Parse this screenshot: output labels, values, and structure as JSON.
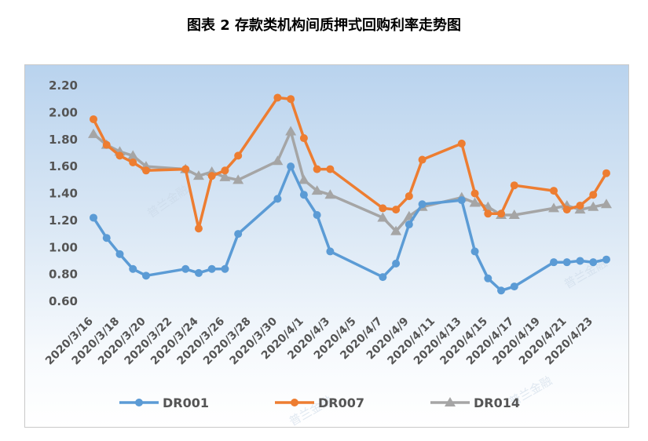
{
  "title": "图表 2  存款类机构间质押式回购利率走势图",
  "watermark_text": "普兰金融",
  "chart_data": {
    "type": "line",
    "title": "图表 2  存款类机构间质押式回购利率走势图",
    "xlabel": "",
    "ylabel": "",
    "ylim": [
      0.6,
      2.2
    ],
    "yticks": [
      "0.60",
      "0.80",
      "1.00",
      "1.20",
      "1.40",
      "1.60",
      "1.80",
      "2.00",
      "2.20"
    ],
    "x_tick_labels": [
      "2020/3/16",
      "2020/3/18",
      "2020/3/20",
      "2020/3/22",
      "2020/3/24",
      "2020/3/26",
      "2020/3/28",
      "2020/3/30",
      "2020/4/1",
      "2020/4/3",
      "2020/4/5",
      "2020/4/7",
      "2020/4/9",
      "2020/4/11",
      "2020/4/13",
      "2020/4/15",
      "2020/4/17",
      "2020/4/19",
      "2020/4/21",
      "2020/4/23"
    ],
    "grid": false,
    "legend_position": "bottom",
    "series": [
      {
        "name": "DR001",
        "color": "#5b9bd5",
        "marker": "circle",
        "points": [
          [
            "2020/3/16",
            1.22
          ],
          [
            "2020/3/17",
            1.07
          ],
          [
            "2020/3/18",
            0.95
          ],
          [
            "2020/3/19",
            0.84
          ],
          [
            "2020/3/20",
            0.79
          ],
          [
            "2020/3/23",
            0.84
          ],
          [
            "2020/3/24",
            0.81
          ],
          [
            "2020/3/25",
            0.84
          ],
          [
            "2020/3/26",
            0.84
          ],
          [
            "2020/3/27",
            1.1
          ],
          [
            "2020/3/30",
            1.36
          ],
          [
            "2020/3/31",
            1.6
          ],
          [
            "2020/4/1",
            1.39
          ],
          [
            "2020/4/2",
            1.24
          ],
          [
            "2020/4/3",
            0.97
          ],
          [
            "2020/4/7",
            0.78
          ],
          [
            "2020/4/8",
            0.88
          ],
          [
            "2020/4/9",
            1.17
          ],
          [
            "2020/4/10",
            1.32
          ],
          [
            "2020/4/13",
            1.35
          ],
          [
            "2020/4/14",
            0.97
          ],
          [
            "2020/4/15",
            0.77
          ],
          [
            "2020/4/16",
            0.68
          ],
          [
            "2020/4/17",
            0.71
          ],
          [
            "2020/4/20",
            0.89
          ],
          [
            "2020/4/21",
            0.89
          ],
          [
            "2020/4/22",
            0.9
          ],
          [
            "2020/4/23",
            0.89
          ],
          [
            "2020/4/24",
            0.91
          ]
        ]
      },
      {
        "name": "DR007",
        "color": "#ed7d31",
        "marker": "circle",
        "points": [
          [
            "2020/3/16",
            1.95
          ],
          [
            "2020/3/17",
            1.76
          ],
          [
            "2020/3/18",
            1.68
          ],
          [
            "2020/3/19",
            1.63
          ],
          [
            "2020/3/20",
            1.57
          ],
          [
            "2020/3/23",
            1.58
          ],
          [
            "2020/3/24",
            1.14
          ],
          [
            "2020/3/25",
            1.53
          ],
          [
            "2020/3/26",
            1.57
          ],
          [
            "2020/3/27",
            1.68
          ],
          [
            "2020/3/30",
            2.11
          ],
          [
            "2020/3/31",
            2.1
          ],
          [
            "2020/4/1",
            1.81
          ],
          [
            "2020/4/2",
            1.58
          ],
          [
            "2020/4/3",
            1.58
          ],
          [
            "2020/4/7",
            1.29
          ],
          [
            "2020/4/8",
            1.28
          ],
          [
            "2020/4/9",
            1.38
          ],
          [
            "2020/4/10",
            1.65
          ],
          [
            "2020/4/13",
            1.77
          ],
          [
            "2020/4/14",
            1.4
          ],
          [
            "2020/4/15",
            1.25
          ],
          [
            "2020/4/16",
            1.25
          ],
          [
            "2020/4/17",
            1.46
          ],
          [
            "2020/4/20",
            1.42
          ],
          [
            "2020/4/21",
            1.28
          ],
          [
            "2020/4/22",
            1.31
          ],
          [
            "2020/4/23",
            1.39
          ],
          [
            "2020/4/24",
            1.55
          ]
        ]
      },
      {
        "name": "DR014",
        "color": "#a5a5a5",
        "marker": "triangle",
        "points": [
          [
            "2020/3/16",
            1.84
          ],
          [
            "2020/3/17",
            1.76
          ],
          [
            "2020/3/18",
            1.71
          ],
          [
            "2020/3/19",
            1.68
          ],
          [
            "2020/3/20",
            1.6
          ],
          [
            "2020/3/23",
            1.58
          ],
          [
            "2020/3/24",
            1.53
          ],
          [
            "2020/3/25",
            1.56
          ],
          [
            "2020/3/26",
            1.52
          ],
          [
            "2020/3/27",
            1.5
          ],
          [
            "2020/3/30",
            1.64
          ],
          [
            "2020/3/31",
            1.86
          ],
          [
            "2020/4/1",
            1.5
          ],
          [
            "2020/4/2",
            1.42
          ],
          [
            "2020/4/3",
            1.39
          ],
          [
            "2020/4/7",
            1.22
          ],
          [
            "2020/4/8",
            1.12
          ],
          [
            "2020/4/9",
            1.23
          ],
          [
            "2020/4/10",
            1.3
          ],
          [
            "2020/4/13",
            1.37
          ],
          [
            "2020/4/14",
            1.33
          ],
          [
            "2020/4/15",
            1.3
          ],
          [
            "2020/4/16",
            1.24
          ],
          [
            "2020/4/17",
            1.24
          ],
          [
            "2020/4/20",
            1.29
          ],
          [
            "2020/4/21",
            1.31
          ],
          [
            "2020/4/22",
            1.28
          ],
          [
            "2020/4/23",
            1.3
          ],
          [
            "2020/4/24",
            1.32
          ]
        ]
      }
    ]
  }
}
